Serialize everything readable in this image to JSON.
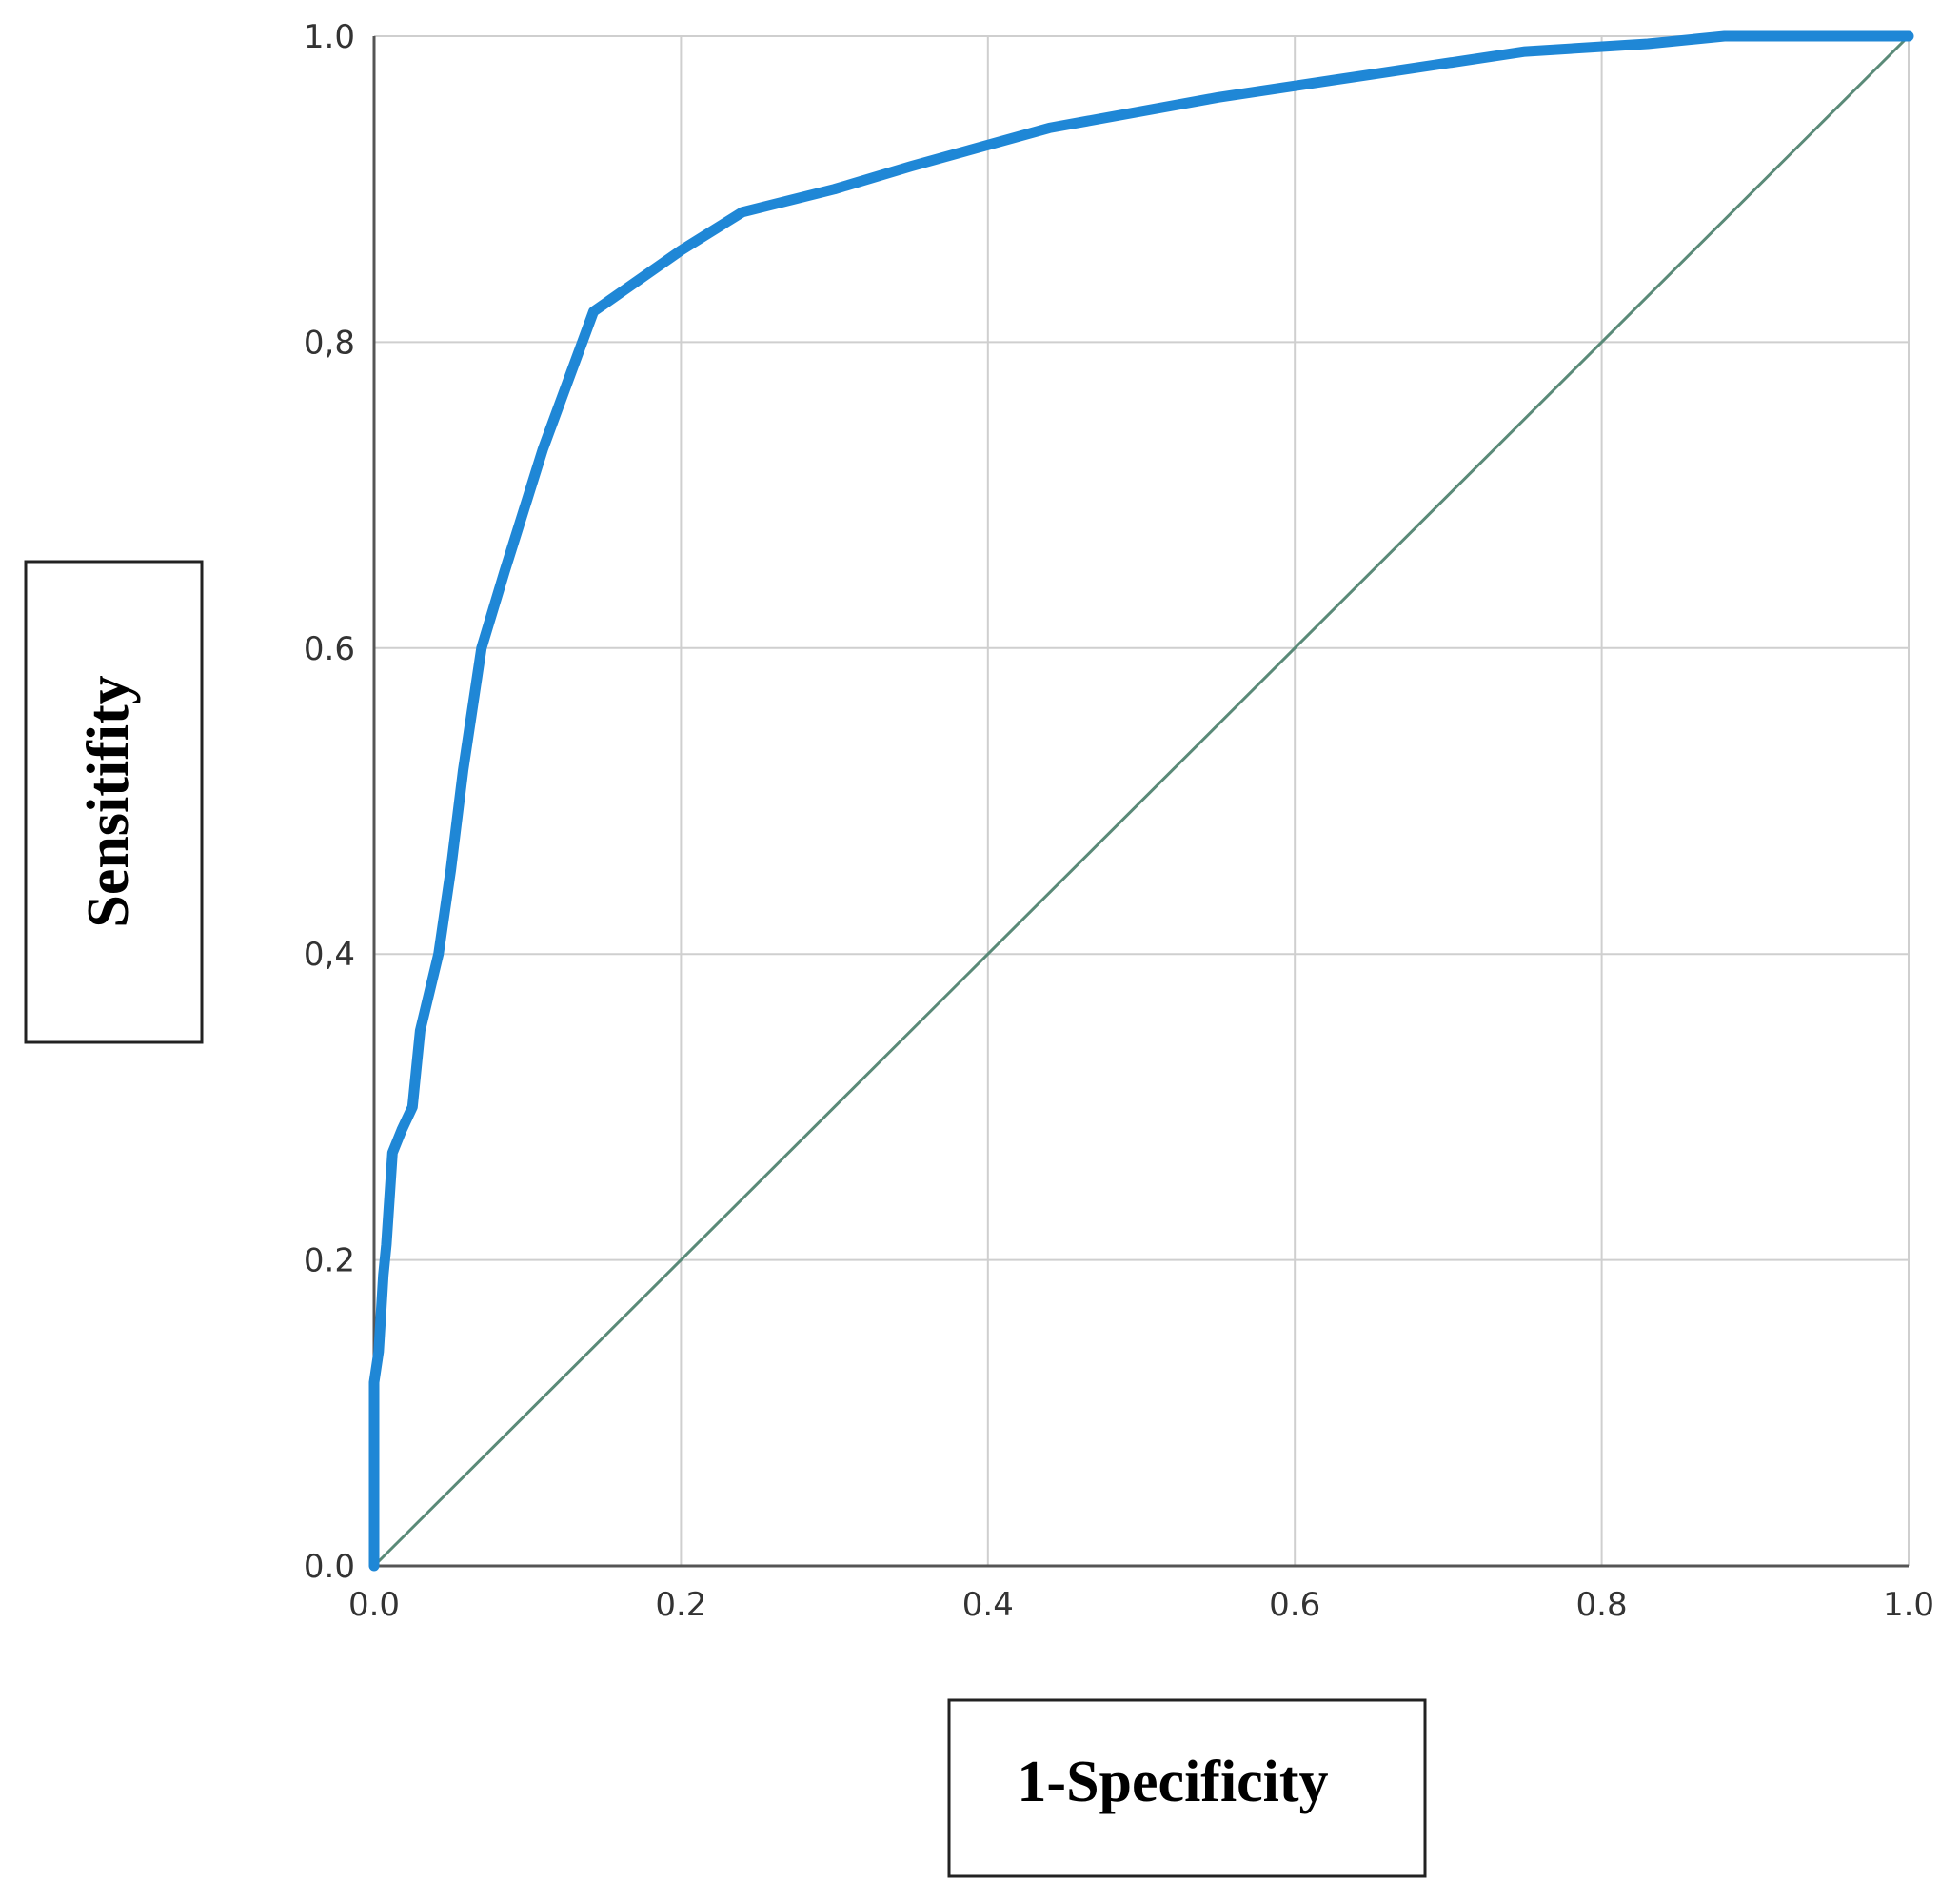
{
  "chart_data": {
    "type": "line",
    "title": "",
    "xlabel": "1-Specificity",
    "ylabel": "Sensitifity",
    "xlim": [
      0,
      1
    ],
    "ylim": [
      0,
      1
    ],
    "x_ticks": [
      "0.0",
      "0.2",
      "0.4",
      "0.6",
      "0.8",
      "1.0"
    ],
    "y_ticks": [
      "0.0",
      "0.2",
      "0,4",
      "0.6",
      "0,8",
      "1.0"
    ],
    "grid": true,
    "legend": "none",
    "series": [
      {
        "color": "#1f87d6",
        "x": [
          0.0,
          0.0,
          0.003,
          0.006,
          0.008,
          0.012,
          0.018,
          0.025,
          0.03,
          0.042,
          0.05,
          0.058,
          0.07,
          0.085,
          0.11,
          0.143,
          0.2,
          0.24,
          0.3,
          0.35,
          0.44,
          0.55,
          0.65,
          0.75,
          0.83,
          0.88,
          0.95,
          1.0
        ],
        "y": [
          0.0,
          0.12,
          0.14,
          0.19,
          0.21,
          0.27,
          0.285,
          0.3,
          0.35,
          0.4,
          0.455,
          0.52,
          0.6,
          0.65,
          0.73,
          0.82,
          0.86,
          0.885,
          0.9,
          0.915,
          0.94,
          0.96,
          0.975,
          0.99,
          0.995,
          1.0,
          1.0,
          1.0
        ]
      },
      {
        "color": "#5a8a78",
        "x": [
          0.0,
          1.0
        ],
        "y": [
          0.0,
          1.0
        ]
      }
    ]
  }
}
